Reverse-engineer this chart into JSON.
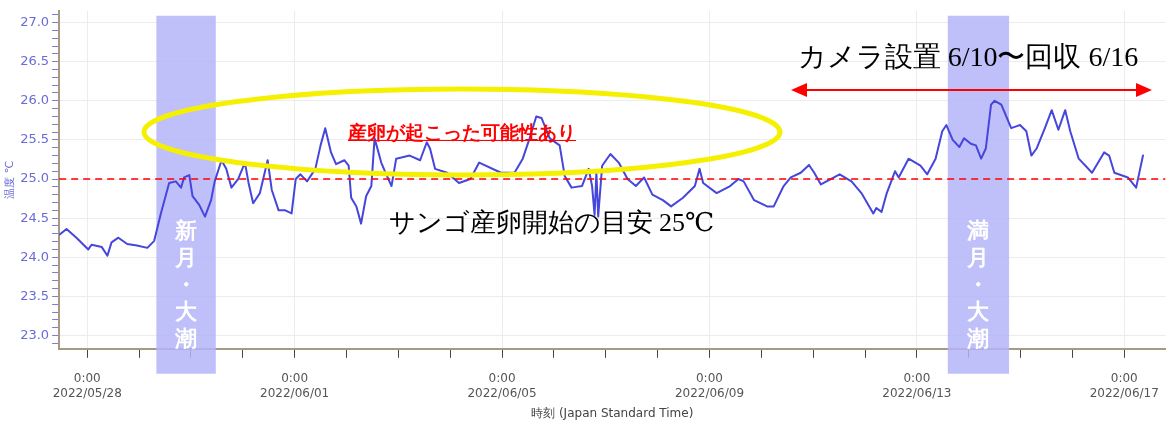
{
  "chart_data": {
    "type": "line",
    "xlabel": "時刻 (Japan Standard Time)",
    "ylabel": "温度 ℃",
    "x": [
      "2022-05-27T11:15",
      "2022-05-27T14:25",
      "2022-05-27T19:00",
      "2022-05-28T00:30",
      "2022-05-28T02:00",
      "2022-05-28T06:45",
      "2022-05-28T09:20",
      "2022-05-28T11:15",
      "2022-05-28T14:25",
      "2022-05-28T18:30",
      "2022-05-28T23:00",
      "2022-05-29T03:50",
      "2022-05-29T07:00",
      "2022-05-29T10:05",
      "2022-05-29T13:55",
      "2022-05-29T17:00",
      "2022-05-29T19:25",
      "2022-05-29T20:50",
      "2022-05-29T23:15",
      "2022-05-30T00:45",
      "2022-05-30T03:50",
      "2022-05-30T06:30",
      "2022-05-30T09:20",
      "2022-05-30T11:00",
      "2022-05-30T14:10",
      "2022-05-30T16:20",
      "2022-05-30T18:45",
      "2022-05-30T21:50",
      "2022-05-31T01:00",
      "2022-05-31T02:40",
      "2022-05-31T04:48",
      "2022-05-31T07:55",
      "2022-05-31T11:30",
      "2022-05-31T13:25",
      "2022-05-31T16:35",
      "2022-05-31T19:40",
      "2022-05-31T22:35",
      "2022-06-01T00:30",
      "2022-06-01T02:40",
      "2022-06-01T05:45",
      "2022-06-01T09:35",
      "2022-06-01T12:00",
      "2022-06-01T14:10",
      "2022-06-01T16:50",
      "2022-06-01T19:10",
      "2022-06-01T23:00",
      "2022-06-02T01:00",
      "2022-06-02T02:10",
      "2022-06-02T04:35",
      "2022-06-02T06:45",
      "2022-06-02T09:05",
      "2022-06-02T11:30",
      "2022-06-02T13:00",
      "2022-06-02T13:55",
      "2022-06-02T16:05",
      "2022-06-02T17:45",
      "2022-06-02T20:50",
      "2022-06-02T23:00",
      "2022-06-03T05:15",
      "2022-06-03T10:05",
      "2022-06-03T13:10",
      "2022-06-03T14:40",
      "2022-06-03T17:00",
      "2022-06-03T22:35",
      "2022-06-04T04:05",
      "2022-06-04T09:20",
      "2022-06-04T13:25",
      "2022-06-04T23:30",
      "2022-06-05T05:45",
      "2022-06-05T09:35",
      "2022-06-05T12:45",
      "2022-06-05T15:50",
      "2022-06-05T18:15",
      "2022-06-05T22:05",
      "2022-06-06T02:40",
      "2022-06-06T05:00",
      "2022-06-06T08:10",
      "2022-06-06T13:00",
      "2022-06-06T16:05",
      "2022-06-06T17:40",
      "2022-06-06T18:50",
      "2022-06-06T19:40",
      "2022-06-06T20:30",
      "2022-06-06T22:20",
      "2022-06-07T02:10",
      "2022-06-07T06:00",
      "2022-06-07T10:05",
      "2022-06-07T13:55",
      "2022-06-07T17:45",
      "2022-06-07T21:35",
      "2022-06-08T02:25",
      "2022-06-08T06:15",
      "2022-06-08T11:45",
      "2022-06-08T17:15",
      "2022-06-08T19:25",
      "2022-06-08T21:05",
      "2022-06-09T03:20",
      "2022-06-09T09:35",
      "2022-06-09T13:25",
      "2022-06-09T15:50",
      "2022-06-09T20:40",
      "2022-06-10T02:40",
      "2022-06-10T05:45",
      "2022-06-10T10:20",
      "2022-06-10T13:40",
      "2022-06-10T18:15",
      "2022-06-10T22:05",
      "2022-06-11T00:30",
      "2022-06-11T03:35",
      "2022-06-11T12:15",
      "2022-06-11T17:45",
      "2022-06-11T22:20",
      "2022-06-12T03:50",
      "2022-06-12T05:15",
      "2022-06-12T07:40",
      "2022-06-12T10:05",
      "2022-06-12T13:55",
      "2022-06-12T15:35",
      "2022-06-12T20:10",
      "2022-06-13T01:40",
      "2022-06-13T04:48",
      "2022-06-13T08:40",
      "2022-06-13T11:45",
      "2022-06-13T13:40",
      "2022-06-13T16:35",
      "2022-06-13T19:40",
      "2022-06-13T21:50",
      "2022-06-14T01:00",
      "2022-06-14T03:20",
      "2022-06-14T05:45",
      "2022-06-14T07:55",
      "2022-06-14T10:20",
      "2022-06-14T12:00",
      "2022-06-14T15:05",
      "2022-06-14T19:40",
      "2022-06-14T23:45",
      "2022-06-15T02:40",
      "2022-06-15T05:00",
      "2022-06-15T07:25",
      "2022-06-15T11:15",
      "2022-06-15T14:25",
      "2022-06-15T17:30",
      "2022-06-15T20:40",
      "2022-06-15T23:00",
      "2022-06-16T02:55",
      "2022-06-16T09:05",
      "2022-06-16T14:40",
      "2022-06-16T17:00",
      "2022-06-16T19:25",
      "2022-06-17T01:40",
      "2022-06-17T05:30",
      "2022-06-17T08:40"
    ],
    "series": [
      {
        "color": "#4646dc",
        "values": [
          24.29,
          24.36,
          24.25,
          24.1,
          24.16,
          24.13,
          24.02,
          24.19,
          24.25,
          24.17,
          24.15,
          24.12,
          24.21,
          24.56,
          24.95,
          24.97,
          24.89,
          25.02,
          25.05,
          24.78,
          24.67,
          24.52,
          24.73,
          24.97,
          25.24,
          25.13,
          24.89,
          25.0,
          25.21,
          24.95,
          24.69,
          24.82,
          25.24,
          24.86,
          24.6,
          24.6,
          24.56,
          25.0,
          25.06,
          24.97,
          25.13,
          25.43,
          25.65,
          25.34,
          25.19,
          25.24,
          25.17,
          24.76,
          24.65,
          24.43,
          24.78,
          24.91,
          25.52,
          25.43,
          25.21,
          25.1,
          24.91,
          25.26,
          25.3,
          25.24,
          25.47,
          25.39,
          25.13,
          25.08,
          24.95,
          25.0,
          25.21,
          25.08,
          25.08,
          25.26,
          25.52,
          25.8,
          25.78,
          25.52,
          25.43,
          25.04,
          24.89,
          24.91,
          25.13,
          24.91,
          24.54,
          25.08,
          24.52,
          25.17,
          25.32,
          25.21,
          25.0,
          24.91,
          25.02,
          24.8,
          24.73,
          24.65,
          24.76,
          24.91,
          25.13,
          24.95,
          24.82,
          24.91,
          25.0,
          24.97,
          24.73,
          24.65,
          24.65,
          24.91,
          25.02,
          25.08,
          25.18,
          25.08,
          24.93,
          25.06,
          24.97,
          24.82,
          24.56,
          24.63,
          24.58,
          24.82,
          25.1,
          25.02,
          25.26,
          25.17,
          25.06,
          25.26,
          25.61,
          25.69,
          25.5,
          25.41,
          25.52,
          25.45,
          25.43,
          25.26,
          25.39,
          25.95,
          26.0,
          25.95,
          25.65,
          25.69,
          25.61,
          25.3,
          25.39,
          25.65,
          25.88,
          25.63,
          25.88,
          25.61,
          25.26,
          25.08,
          25.34,
          25.3,
          25.08,
          25.02,
          24.89,
          25.3
        ]
      }
    ],
    "xlim": [
      "2022-05-27T11:00",
      "2022-06-17T19:00"
    ],
    "xticks": [
      {
        "value": "2022-05-28",
        "label": "0:00\n2022/05/28"
      },
      {
        "value": "2022-05-29",
        "label": null
      },
      {
        "value": "2022-05-30",
        "label": null
      },
      {
        "value": "2022-05-31",
        "label": null
      },
      {
        "value": "2022-06-01",
        "label": "0:00\n2022/06/01"
      },
      {
        "value": "2022-06-02",
        "label": null
      },
      {
        "value": "2022-06-03",
        "label": null
      },
      {
        "value": "2022-06-04",
        "label": null
      },
      {
        "value": "2022-06-05",
        "label": "0:00\n2022/06/05"
      },
      {
        "value": "2022-06-06",
        "label": null
      },
      {
        "value": "2022-06-07",
        "label": null
      },
      {
        "value": "2022-06-08",
        "label": null
      },
      {
        "value": "2022-06-09",
        "label": "0:00\n2022/06/09"
      },
      {
        "value": "2022-06-10",
        "label": null
      },
      {
        "value": "2022-06-11",
        "label": null
      },
      {
        "value": "2022-06-12",
        "label": null
      },
      {
        "value": "2022-06-13",
        "label": "0:00\n2022/06/13"
      },
      {
        "value": "2022-06-14",
        "label": null
      },
      {
        "value": "2022-06-15",
        "label": null
      },
      {
        "value": "2022-06-16",
        "label": null
      },
      {
        "value": "2022-06-17",
        "label": "0:00\n2022/06/17"
      }
    ],
    "ylim": [
      22.83,
      27.15
    ],
    "yticks": [
      {
        "value": 22.9,
        "label": null
      },
      {
        "value": 23,
        "label": "23.0"
      },
      {
        "value": 23.1,
        "label": null
      },
      {
        "value": 23.2,
        "label": null
      },
      {
        "value": 23.3,
        "label": null
      },
      {
        "value": 23.4,
        "label": null
      },
      {
        "value": 23.5,
        "label": "23.5"
      },
      {
        "value": 23.6,
        "label": null
      },
      {
        "value": 23.7,
        "label": null
      },
      {
        "value": 23.8,
        "label": null
      },
      {
        "value": 23.9,
        "label": null
      },
      {
        "value": 24,
        "label": "24.0"
      },
      {
        "value": 24.1,
        "label": null
      },
      {
        "value": 24.2,
        "label": null
      },
      {
        "value": 24.3,
        "label": null
      },
      {
        "value": 24.4,
        "label": null
      },
      {
        "value": 24.5,
        "label": "24.5"
      },
      {
        "value": 24.6,
        "label": null
      },
      {
        "value": 24.7,
        "label": null
      },
      {
        "value": 24.8,
        "label": null
      },
      {
        "value": 24.9,
        "label": null
      },
      {
        "value": 25,
        "label": "25.0"
      },
      {
        "value": 25.1,
        "label": null
      },
      {
        "value": 25.2,
        "label": null
      },
      {
        "value": 25.3,
        "label": null
      },
      {
        "value": 25.4,
        "label": null
      },
      {
        "value": 25.5,
        "label": "25.5"
      },
      {
        "value": 25.6,
        "label": null
      },
      {
        "value": 25.7,
        "label": null
      },
      {
        "value": 25.8,
        "label": null
      },
      {
        "value": 25.9,
        "label": null
      },
      {
        "value": 26,
        "label": "26.0"
      },
      {
        "value": 26.1,
        "label": null
      },
      {
        "value": 26.2,
        "label": null
      },
      {
        "value": 26.3,
        "label": null
      },
      {
        "value": 26.4,
        "label": null
      },
      {
        "value": 26.5,
        "label": "26.5"
      },
      {
        "value": 26.6,
        "label": null
      },
      {
        "value": 26.7,
        "label": null
      },
      {
        "value": 26.8,
        "label": null
      },
      {
        "value": 26.9,
        "label": null
      },
      {
        "value": 27,
        "label": "27.0"
      },
      {
        "value": 27.1,
        "label": null
      }
    ],
    "grid": true,
    "marker": "none",
    "line_style": "solid",
    "ref_lines": [
      {
        "axis": "y",
        "value": 25,
        "label": "サンゴ産卵開始の目安 25℃",
        "color": "#ff0000",
        "line_style": "dashed"
      }
    ],
    "bands": [
      {
        "axis": "x",
        "from": "2022-05-29T08:00",
        "to": "2022-05-30T11:30",
        "label": "新月・大潮",
        "color": "#b4b4f8"
      },
      {
        "axis": "x",
        "from": "2022-06-13T14:20",
        "to": "2022-06-14T18:40",
        "label": "満月・大潮",
        "color": "#b4b4f8"
      }
    ],
    "annotations": [
      "産卵が起こった可能性あり",
      "カメラ設置 6/10〜回収 6/16"
    ]
  }
}
